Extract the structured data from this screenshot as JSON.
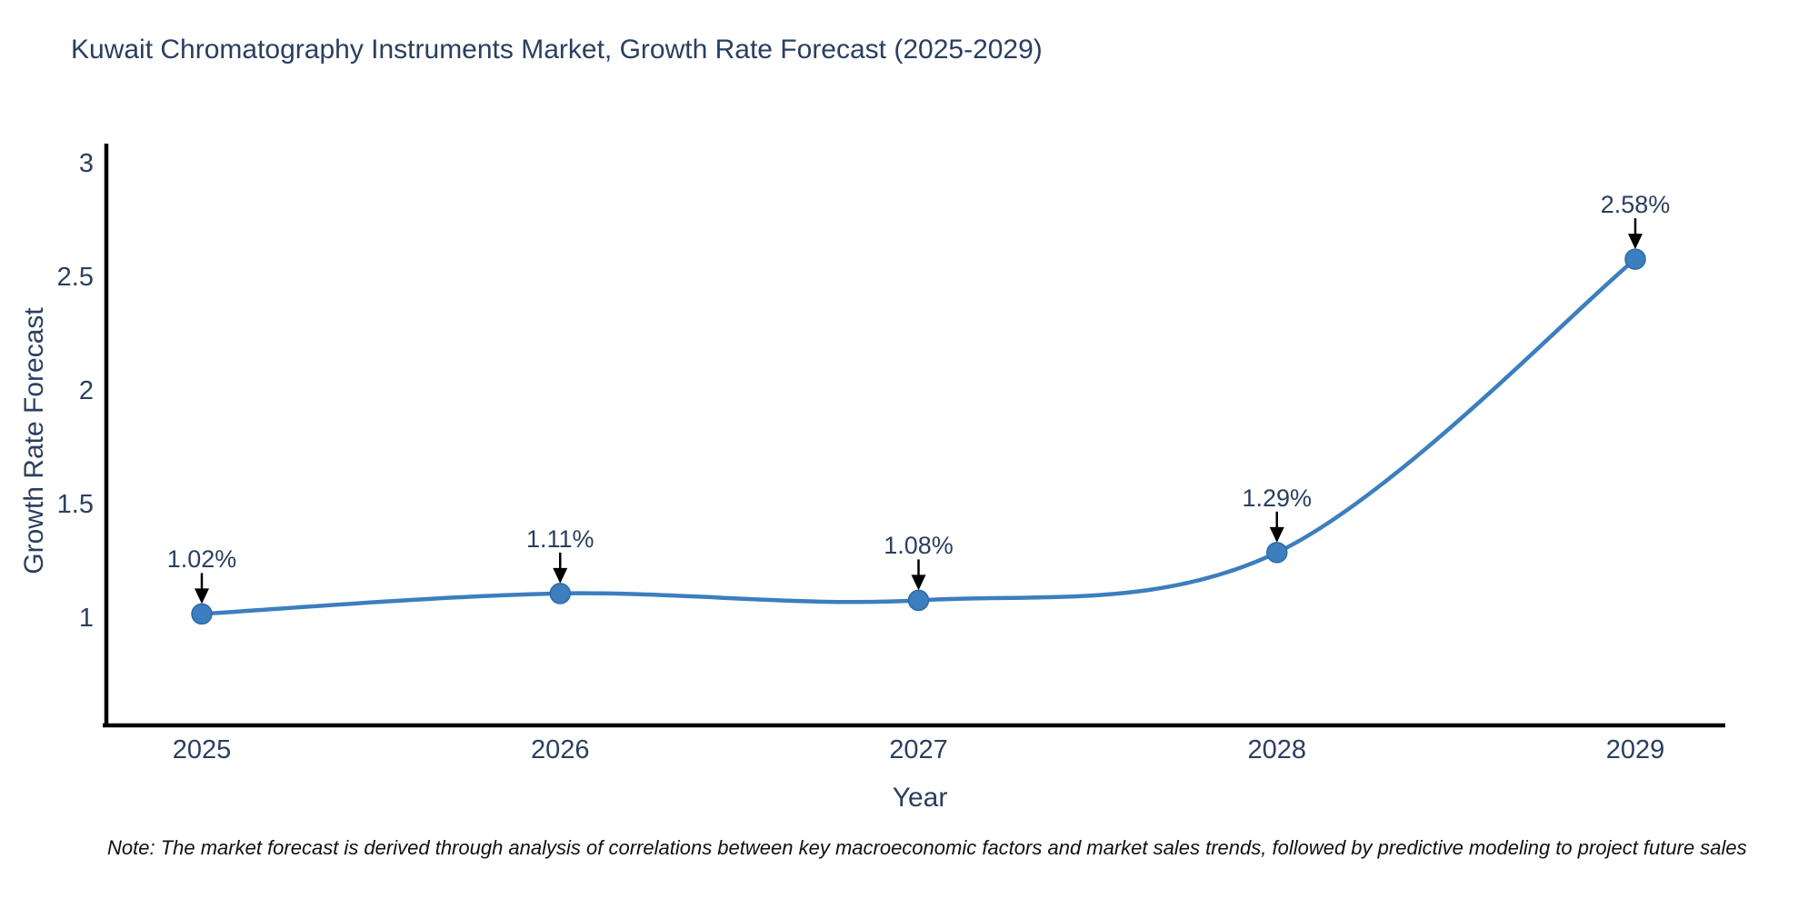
{
  "title": "Kuwait Chromatography Instruments Market, Growth Rate Forecast (2025-2029)",
  "note": "Note: The market forecast is derived through analysis of correlations between key macroeconomic factors and market sales trends, followed by predictive modeling to project future sales",
  "chart_data": {
    "type": "line",
    "title": "Kuwait Chromatography Instruments Market, Growth Rate Forecast (2025-2029)",
    "x": [
      "2025",
      "2026",
      "2027",
      "2028",
      "2029"
    ],
    "values": [
      1.02,
      1.11,
      1.08,
      1.29,
      2.58
    ],
    "point_labels": [
      "1.02%",
      "1.11%",
      "1.08%",
      "1.29%",
      "2.58%"
    ],
    "xlabel": "Year",
    "ylabel": "Growth Rate Forecast",
    "ytick_labels": [
      "1",
      "1.5",
      "2",
      "2.5",
      "3"
    ],
    "ytick_values": [
      1,
      1.5,
      2,
      2.5,
      3
    ],
    "ylim": [
      0.53,
      3.08
    ],
    "grid": false,
    "legend": "none",
    "annotations_have_arrows": true,
    "colors": {
      "line": "#3c7ebe",
      "marker": "#3c7ebe",
      "marker_edge": "#2f6aa5",
      "text": "#2a3f5f",
      "axis": "#000000",
      "arrow": "#000000",
      "note_text": "#111111",
      "background": "#ffffff"
    }
  }
}
